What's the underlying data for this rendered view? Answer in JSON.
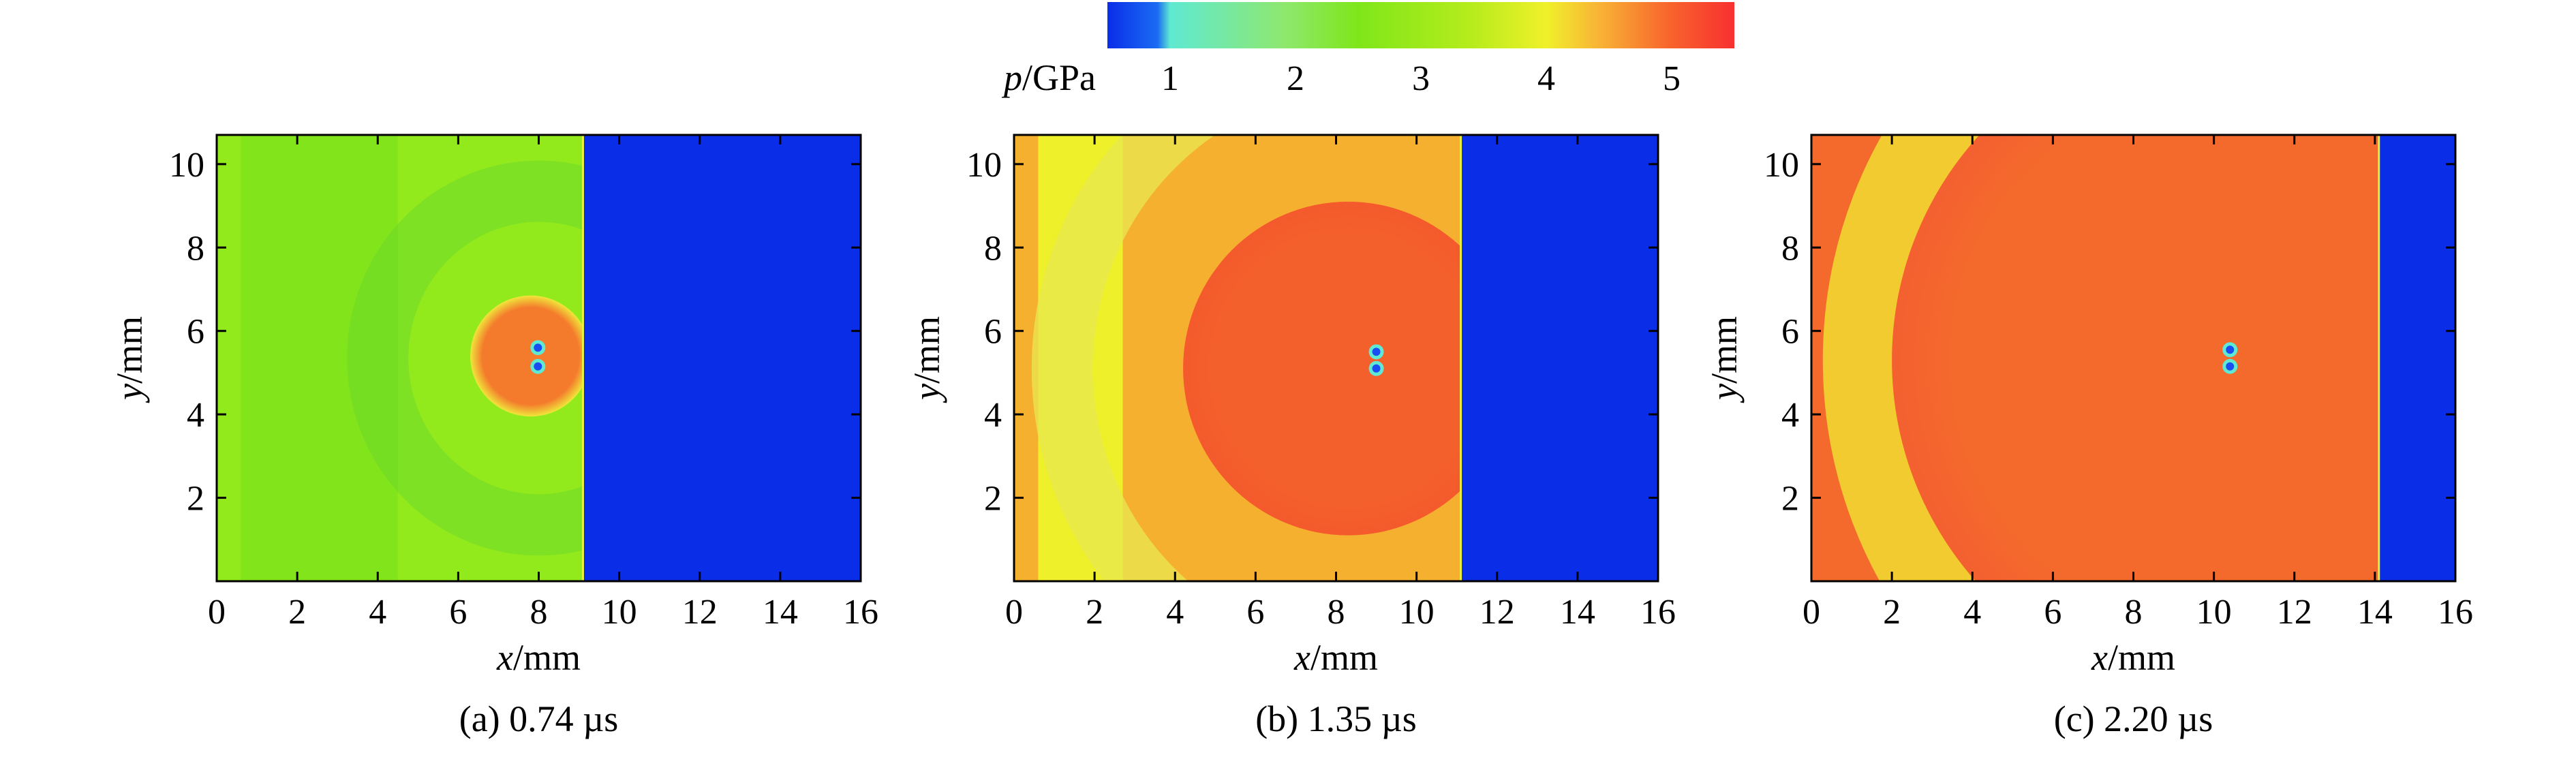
{
  "colorbar": {
    "label_var": "p",
    "label_unit": "/GPa",
    "ticks": [
      1,
      2,
      3,
      4,
      5
    ],
    "range": [
      0.5,
      5.5
    ],
    "colors": [
      "#0a2de8",
      "#1a6cf2",
      "#5fe9d2",
      "#8ee870",
      "#7fe61a",
      "#b6ec1c",
      "#f0f02a",
      "#f8b636",
      "#f8622c",
      "#f83030"
    ]
  },
  "chart_data": [
    {
      "type": "heatmap",
      "caption": "(a) 0.74 µs",
      "xlabel_var": "x",
      "xlabel_unit": "/mm",
      "ylabel_var": "y",
      "ylabel_unit": "/mm",
      "xlim": [
        0,
        16
      ],
      "ylim": [
        0,
        10.7
      ],
      "xticks": [
        0,
        2,
        4,
        6,
        8,
        10,
        12,
        14,
        16
      ],
      "yticks": [
        2,
        4,
        6,
        8,
        10
      ],
      "fields": {
        "base_left": "#82e41a",
        "base_mid": "#92ea1c",
        "band_x": [
          0.6,
          4.5
        ],
        "front_x": 9.1,
        "unshocked": "#0a2de8",
        "ring": {
          "cx": 8.0,
          "cy": 5.35,
          "r": 4.0,
          "color": "#6ed82a"
        },
        "bubble": {
          "cx": 7.8,
          "cy": 5.4,
          "rx": 1.5,
          "ry": 1.45,
          "edge": "#f0e63a",
          "fill": "#f47a2c"
        },
        "voids": [
          [
            7.98,
            5.6
          ],
          [
            7.98,
            5.15
          ]
        ]
      }
    },
    {
      "type": "heatmap",
      "caption": "(b) 1.35 µs",
      "xlabel_var": "x",
      "xlabel_unit": "/mm",
      "ylabel_var": "y",
      "ylabel_unit": "/mm",
      "xlim": [
        0,
        16
      ],
      "ylim": [
        0,
        10.7
      ],
      "xticks": [
        0,
        2,
        4,
        6,
        8,
        10,
        12,
        14,
        16
      ],
      "yticks": [
        2,
        4,
        6,
        8,
        10
      ],
      "fields": {
        "base_left": "#eef02a",
        "base_mid": "#f6b030",
        "band_x": [
          0.6,
          2.7
        ],
        "front_x": 11.1,
        "unshocked": "#0a2de8",
        "ring": {
          "cx": 8.6,
          "cy": 5.1,
          "r": 7.4,
          "color": "#e8e850"
        },
        "bubble": {
          "cx": 8.3,
          "cy": 5.1,
          "rx": 4.1,
          "ry": 4.0,
          "edge": "#f45a2c",
          "fill": "#f4602c"
        },
        "voids": [
          [
            9.0,
            5.5
          ],
          [
            9.0,
            5.1
          ]
        ]
      }
    },
    {
      "type": "heatmap",
      "caption": "(c) 2.20 µs",
      "xlabel_var": "x",
      "xlabel_unit": "/mm",
      "ylabel_var": "y",
      "ylabel_unit": "/mm",
      "xlim": [
        0,
        16
      ],
      "ylim": [
        0,
        10.7
      ],
      "xticks": [
        0,
        2,
        4,
        6,
        8,
        10,
        12,
        14,
        16
      ],
      "yticks": [
        2,
        4,
        6,
        8,
        10
      ],
      "fields": {
        "base_left": "#f46a2c",
        "base_mid": "#f46a2c",
        "band_x": [
          0.0,
          0.3
        ],
        "front_x": 14.1,
        "unshocked": "#0a2de8",
        "ring": {
          "cx": 11.0,
          "cy": 5.3,
          "r": 9.7,
          "color": "#f0ec30"
        },
        "bubble": {
          "cx": 10.3,
          "cy": 5.3,
          "rx": 8.3,
          "ry": 8.0,
          "edge": "#f46030",
          "fill": "#f46a2c"
        },
        "voids": [
          [
            10.4,
            5.55
          ],
          [
            10.4,
            5.15
          ]
        ]
      }
    }
  ]
}
